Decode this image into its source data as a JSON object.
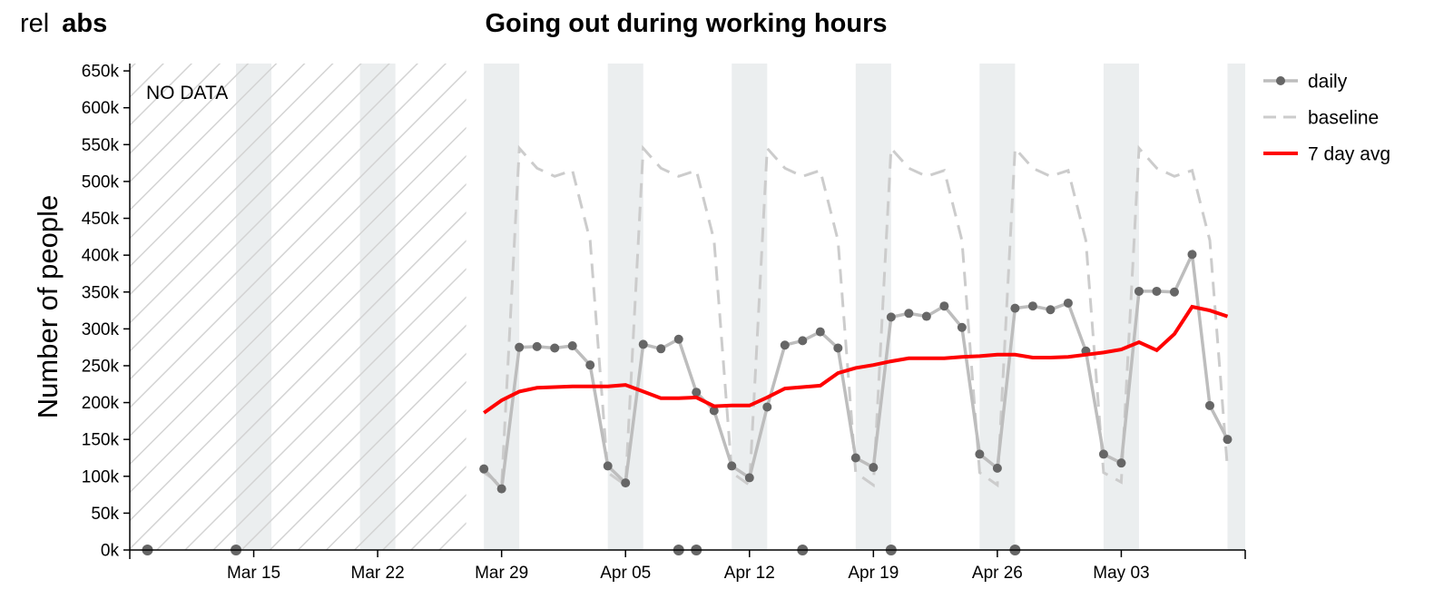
{
  "toggle": {
    "rel_label": "rel",
    "abs_label": "abs",
    "active": "abs"
  },
  "chart_data": {
    "type": "line",
    "title": "Going out during working hours",
    "ylabel": "Number of people",
    "xlabel": "",
    "ylim": [
      0,
      660000
    ],
    "xlim": [
      "2020-03-08",
      "2020-05-10"
    ],
    "yticks": [
      "0k",
      "50k",
      "100k",
      "150k",
      "200k",
      "250k",
      "300k",
      "350k",
      "400k",
      "450k",
      "500k",
      "550k",
      "600k",
      "650k"
    ],
    "ytick_values": [
      0,
      50000,
      100000,
      150000,
      200000,
      250000,
      300000,
      350000,
      400000,
      450000,
      500000,
      550000,
      600000,
      650000
    ],
    "xticks": [
      {
        "date": "2020-03-15",
        "label": "Mar 15"
      },
      {
        "date": "2020-03-22",
        "label": "Mar 22"
      },
      {
        "date": "2020-03-29",
        "label": "Mar 29"
      },
      {
        "date": "2020-04-05",
        "label": "Apr 05"
      },
      {
        "date": "2020-04-12",
        "label": "Apr 12"
      },
      {
        "date": "2020-04-19",
        "label": "Apr 19"
      },
      {
        "date": "2020-04-26",
        "label": "Apr 26"
      },
      {
        "date": "2020-05-03",
        "label": "May 03"
      }
    ],
    "no_data_label": "NO DATA",
    "no_data_range": [
      "2020-03-08",
      "2020-03-27"
    ],
    "weekend_bands": [
      [
        "2020-03-14",
        "2020-03-16"
      ],
      [
        "2020-03-21",
        "2020-03-23"
      ],
      [
        "2020-03-28",
        "2020-03-30"
      ],
      [
        "2020-04-04",
        "2020-04-06"
      ],
      [
        "2020-04-11",
        "2020-04-13"
      ],
      [
        "2020-04-18",
        "2020-04-20"
      ],
      [
        "2020-04-25",
        "2020-04-27"
      ],
      [
        "2020-05-02",
        "2020-05-04"
      ],
      [
        "2020-05-09",
        "2020-05-10"
      ]
    ],
    "legend_position": "top-right",
    "grid": false,
    "zero_markers": [
      "2020-03-09",
      "2020-03-14",
      "2020-04-08",
      "2020-04-09",
      "2020-04-15",
      "2020-04-20",
      "2020-04-27"
    ],
    "series": [
      {
        "name": "daily",
        "style": "line-marker",
        "color": "#bdbdbd",
        "marker_color": "#666666",
        "points": [
          [
            "2020-03-28",
            110000
          ],
          [
            "2020-03-29",
            83000
          ],
          [
            "2020-03-30",
            275000
          ],
          [
            "2020-03-31",
            276000
          ],
          [
            "2020-04-01",
            274000
          ],
          [
            "2020-04-02",
            277000
          ],
          [
            "2020-04-03",
            251000
          ],
          [
            "2020-04-04",
            114000
          ],
          [
            "2020-04-05",
            91000
          ],
          [
            "2020-04-06",
            279000
          ],
          [
            "2020-04-07",
            273000
          ],
          [
            "2020-04-08",
            286000
          ],
          [
            "2020-04-09",
            214000
          ],
          [
            "2020-04-10",
            189000
          ],
          [
            "2020-04-11",
            114000
          ],
          [
            "2020-04-12",
            98000
          ],
          [
            "2020-04-13",
            194000
          ],
          [
            "2020-04-14",
            278000
          ],
          [
            "2020-04-15",
            284000
          ],
          [
            "2020-04-16",
            296000
          ],
          [
            "2020-04-17",
            274000
          ],
          [
            "2020-04-18",
            125000
          ],
          [
            "2020-04-19",
            112000
          ],
          [
            "2020-04-20",
            316000
          ],
          [
            "2020-04-21",
            321000
          ],
          [
            "2020-04-22",
            317000
          ],
          [
            "2020-04-23",
            331000
          ],
          [
            "2020-04-24",
            302000
          ],
          [
            "2020-04-25",
            130000
          ],
          [
            "2020-04-26",
            111000
          ],
          [
            "2020-04-27",
            328000
          ],
          [
            "2020-04-28",
            331000
          ],
          [
            "2020-04-29",
            326000
          ],
          [
            "2020-04-30",
            335000
          ],
          [
            "2020-05-01",
            270000
          ],
          [
            "2020-05-02",
            130000
          ],
          [
            "2020-05-03",
            118000
          ],
          [
            "2020-05-04",
            351000
          ],
          [
            "2020-05-05",
            351000
          ],
          [
            "2020-05-06",
            350000
          ],
          [
            "2020-05-07",
            401000
          ],
          [
            "2020-05-08",
            196000
          ],
          [
            "2020-05-09",
            150000
          ]
        ]
      },
      {
        "name": "baseline",
        "style": "dashed",
        "color": "#cccccc",
        "points": [
          [
            "2020-03-28",
            105000
          ],
          [
            "2020-03-29",
            88000
          ],
          [
            "2020-03-30",
            545000
          ],
          [
            "2020-03-31",
            518000
          ],
          [
            "2020-04-01",
            507000
          ],
          [
            "2020-04-02",
            515000
          ],
          [
            "2020-04-03",
            420000
          ],
          [
            "2020-04-04",
            105000
          ],
          [
            "2020-04-05",
            88000
          ],
          [
            "2020-04-06",
            545000
          ],
          [
            "2020-04-07",
            518000
          ],
          [
            "2020-04-08",
            507000
          ],
          [
            "2020-04-09",
            515000
          ],
          [
            "2020-04-10",
            420000
          ],
          [
            "2020-04-11",
            105000
          ],
          [
            "2020-04-12",
            88000
          ],
          [
            "2020-04-13",
            545000
          ],
          [
            "2020-04-14",
            518000
          ],
          [
            "2020-04-15",
            507000
          ],
          [
            "2020-04-16",
            515000
          ],
          [
            "2020-04-17",
            420000
          ],
          [
            "2020-04-18",
            105000
          ],
          [
            "2020-04-19",
            88000
          ],
          [
            "2020-04-20",
            545000
          ],
          [
            "2020-04-21",
            518000
          ],
          [
            "2020-04-22",
            507000
          ],
          [
            "2020-04-23",
            515000
          ],
          [
            "2020-04-24",
            420000
          ],
          [
            "2020-04-25",
            105000
          ],
          [
            "2020-04-26",
            88000
          ],
          [
            "2020-04-27",
            545000
          ],
          [
            "2020-04-28",
            518000
          ],
          [
            "2020-04-29",
            507000
          ],
          [
            "2020-04-30",
            515000
          ],
          [
            "2020-05-01",
            420000
          ],
          [
            "2020-05-02",
            105000
          ],
          [
            "2020-05-03",
            92000
          ],
          [
            "2020-05-04",
            545000
          ],
          [
            "2020-05-05",
            518000
          ],
          [
            "2020-05-06",
            507000
          ],
          [
            "2020-05-07",
            515000
          ],
          [
            "2020-05-08",
            420000
          ],
          [
            "2020-05-09",
            110000
          ]
        ]
      },
      {
        "name": "7 day avg",
        "style": "solid",
        "color": "#ff0000",
        "points": [
          [
            "2020-03-28",
            186000
          ],
          [
            "2020-03-29",
            203000
          ],
          [
            "2020-03-30",
            215000
          ],
          [
            "2020-03-31",
            220000
          ],
          [
            "2020-04-01",
            221000
          ],
          [
            "2020-04-02",
            222000
          ],
          [
            "2020-04-03",
            222000
          ],
          [
            "2020-04-04",
            222000
          ],
          [
            "2020-04-05",
            224000
          ],
          [
            "2020-04-06",
            215000
          ],
          [
            "2020-04-07",
            206000
          ],
          [
            "2020-04-08",
            206000
          ],
          [
            "2020-04-09",
            207000
          ],
          [
            "2020-04-10",
            195000
          ],
          [
            "2020-04-11",
            196000
          ],
          [
            "2020-04-12",
            196000
          ],
          [
            "2020-04-13",
            207000
          ],
          [
            "2020-04-14",
            219000
          ],
          [
            "2020-04-15",
            221000
          ],
          [
            "2020-04-16",
            223000
          ],
          [
            "2020-04-17",
            240000
          ],
          [
            "2020-04-18",
            247000
          ],
          [
            "2020-04-19",
            251000
          ],
          [
            "2020-04-20",
            256000
          ],
          [
            "2020-04-21",
            260000
          ],
          [
            "2020-04-22",
            260000
          ],
          [
            "2020-04-23",
            260000
          ],
          [
            "2020-04-24",
            262000
          ],
          [
            "2020-04-25",
            263000
          ],
          [
            "2020-04-26",
            265000
          ],
          [
            "2020-04-27",
            265000
          ],
          [
            "2020-04-28",
            261000
          ],
          [
            "2020-04-29",
            261000
          ],
          [
            "2020-04-30",
            262000
          ],
          [
            "2020-05-01",
            265000
          ],
          [
            "2020-05-02",
            268000
          ],
          [
            "2020-05-03",
            272000
          ],
          [
            "2020-05-04",
            282000
          ],
          [
            "2020-05-05",
            271000
          ],
          [
            "2020-05-06",
            293000
          ],
          [
            "2020-05-07",
            330000
          ],
          [
            "2020-05-08",
            325000
          ],
          [
            "2020-05-09",
            317000
          ]
        ]
      }
    ]
  }
}
